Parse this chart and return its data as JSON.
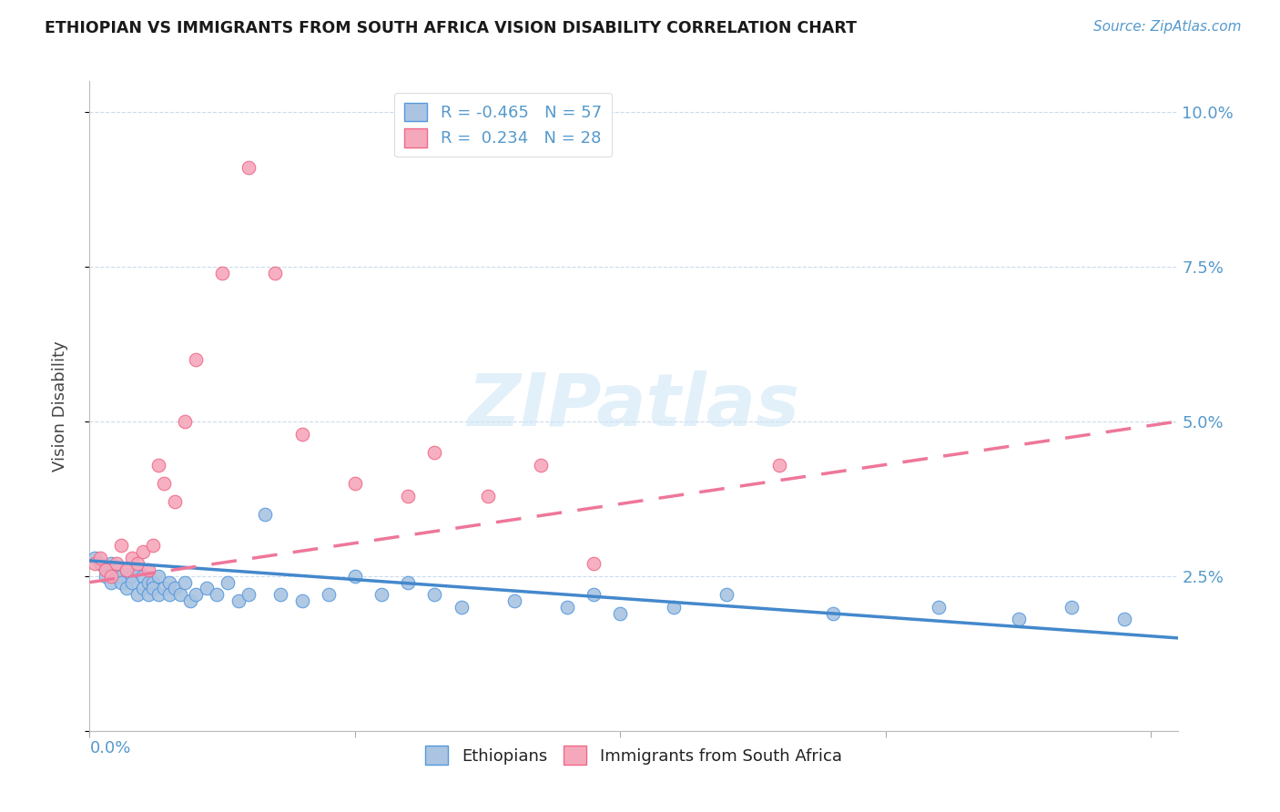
{
  "title": "ETHIOPIAN VS IMMIGRANTS FROM SOUTH AFRICA VISION DISABILITY CORRELATION CHART",
  "source": "Source: ZipAtlas.com",
  "ylabel": "Vision Disability",
  "ylim": [
    0.0,
    0.105
  ],
  "xlim": [
    0.0,
    0.205
  ],
  "ytick_positions": [
    0.0,
    0.025,
    0.05,
    0.075,
    0.1
  ],
  "ytick_labels": [
    "",
    "2.5%",
    "5.0%",
    "7.5%",
    "10.0%"
  ],
  "watermark_text": "ZIPatlas",
  "blue_color": "#aac4e2",
  "pink_color": "#f5a8bb",
  "blue_edge_color": "#5599dd",
  "pink_edge_color": "#f06888",
  "blue_line_color": "#4488cc",
  "pink_line_color": "#ee7799",
  "ethiopians_label": "Ethiopians",
  "immigrants_label": "Immigrants from South Africa",
  "legend_r_blue": "R = -0.465",
  "legend_n_blue": "N = 57",
  "legend_r_pink": "R =  0.234",
  "legend_n_pink": "N = 28",
  "blue_x": [
    0.001,
    0.002,
    0.003,
    0.003,
    0.004,
    0.004,
    0.005,
    0.005,
    0.006,
    0.006,
    0.007,
    0.007,
    0.008,
    0.008,
    0.009,
    0.009,
    0.01,
    0.01,
    0.011,
    0.011,
    0.012,
    0.012,
    0.013,
    0.013,
    0.014,
    0.015,
    0.015,
    0.016,
    0.017,
    0.018,
    0.019,
    0.02,
    0.022,
    0.024,
    0.026,
    0.028,
    0.03,
    0.033,
    0.036,
    0.04,
    0.045,
    0.05,
    0.055,
    0.06,
    0.065,
    0.07,
    0.08,
    0.09,
    0.095,
    0.1,
    0.11,
    0.12,
    0.14,
    0.16,
    0.175,
    0.185,
    0.195
  ],
  "blue_y": [
    0.028,
    0.027,
    0.026,
    0.025,
    0.027,
    0.024,
    0.026,
    0.025,
    0.025,
    0.024,
    0.026,
    0.023,
    0.025,
    0.024,
    0.026,
    0.022,
    0.025,
    0.023,
    0.024,
    0.022,
    0.024,
    0.023,
    0.025,
    0.022,
    0.023,
    0.024,
    0.022,
    0.023,
    0.022,
    0.024,
    0.021,
    0.022,
    0.023,
    0.022,
    0.024,
    0.021,
    0.022,
    0.035,
    0.022,
    0.021,
    0.022,
    0.025,
    0.022,
    0.024,
    0.022,
    0.02,
    0.021,
    0.02,
    0.022,
    0.019,
    0.02,
    0.022,
    0.019,
    0.02,
    0.018,
    0.02,
    0.018
  ],
  "pink_x": [
    0.001,
    0.002,
    0.003,
    0.004,
    0.005,
    0.006,
    0.007,
    0.008,
    0.009,
    0.01,
    0.011,
    0.012,
    0.013,
    0.014,
    0.016,
    0.018,
    0.02,
    0.025,
    0.03,
    0.035,
    0.04,
    0.05,
    0.06,
    0.065,
    0.075,
    0.085,
    0.095,
    0.13
  ],
  "pink_y": [
    0.027,
    0.028,
    0.026,
    0.025,
    0.027,
    0.03,
    0.026,
    0.028,
    0.027,
    0.029,
    0.026,
    0.03,
    0.043,
    0.04,
    0.037,
    0.05,
    0.06,
    0.074,
    0.091,
    0.074,
    0.048,
    0.04,
    0.038,
    0.045,
    0.038,
    0.043,
    0.027,
    0.043
  ],
  "blue_line_x0": 0.0,
  "blue_line_x1": 0.205,
  "blue_line_y0": 0.0275,
  "blue_line_y1": 0.015,
  "pink_line_x0": 0.0,
  "pink_line_x1": 0.205,
  "pink_line_y0": 0.024,
  "pink_line_y1": 0.05
}
